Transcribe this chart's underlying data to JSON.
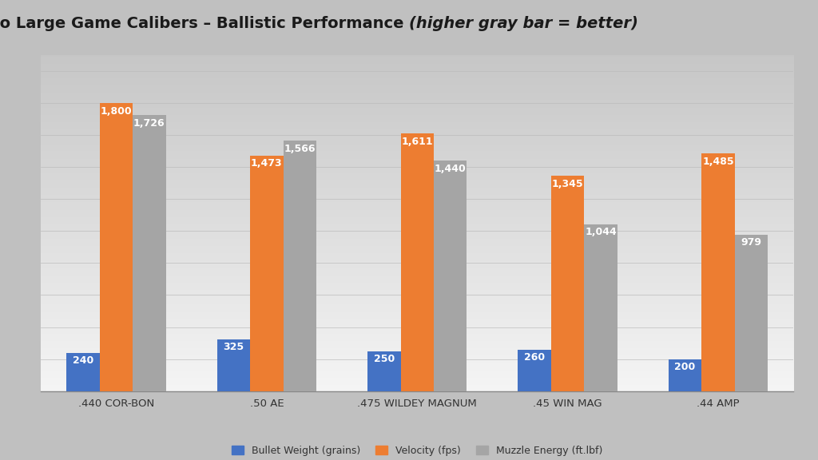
{
  "title_regular": "Semi-Auto Large Game Calibers – Ballistic Performance ",
  "title_italic": "(higher gray bar = better)",
  "categories": [
    ".440 COR-BON",
    ".50 AE",
    ".475 WILDEY MAGNUM",
    ".45 WIN MAG",
    ".44 AMP"
  ],
  "bullet_weight": [
    240,
    325,
    250,
    260,
    200
  ],
  "velocity": [
    1800,
    1473,
    1611,
    1345,
    1485
  ],
  "muzzle_energy": [
    1726,
    1566,
    1440,
    1044,
    979
  ],
  "color_blue": "#4472C4",
  "color_orange": "#ED7D31",
  "color_gray": "#A5A5A5",
  "bar_width": 0.22,
  "ylim": [
    0,
    2100
  ],
  "legend_labels": [
    "Bullet Weight (grains)",
    "Velocity (fps)",
    "Muzzle Energy (ft.lbf)"
  ],
  "label_fontsize": 9,
  "title_fontsize": 14,
  "axis_label_fontsize": 9.5,
  "bg_color_top": "#C8C8C8",
  "bg_color_bottom": "#F0F0F0",
  "grid_color": "#BBBBBB"
}
